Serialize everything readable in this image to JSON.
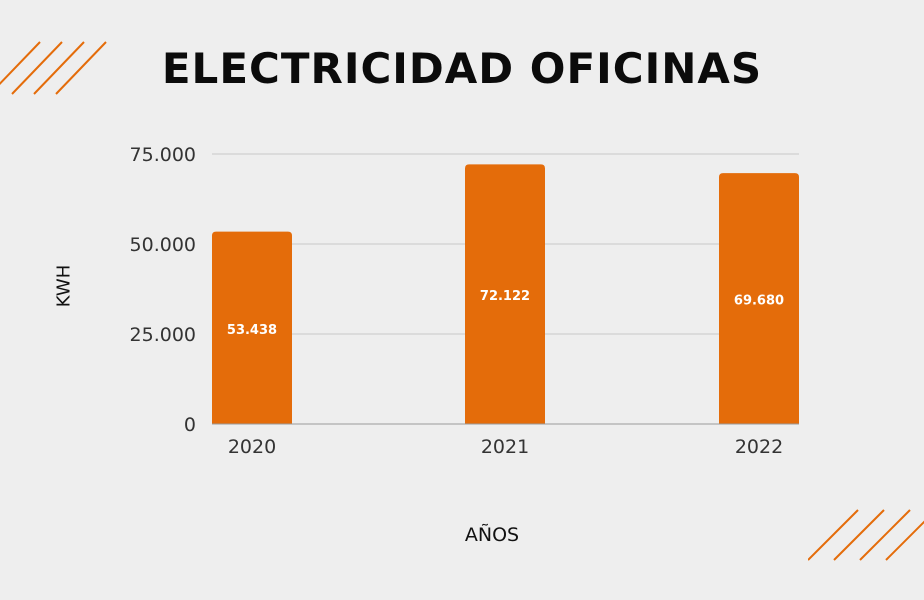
{
  "colors": {
    "background": "#eeeeee",
    "bar": "#e46c0a",
    "gridline": "#c8c8c8",
    "deco_lines": "#e46c0a",
    "bar_label": "#ffffff",
    "text": "#111111"
  },
  "chart_data": {
    "type": "bar",
    "title": "ELECTRICIDAD OFICINAS",
    "xlabel": "AÑOS",
    "ylabel": "KWH",
    "categories": [
      "2020",
      "2021",
      "2022"
    ],
    "values": [
      53438,
      72122,
      69680
    ],
    "value_labels": [
      "53.438",
      "72.122",
      "69.680"
    ],
    "yticks": [
      0,
      25000,
      50000,
      75000
    ],
    "ytick_labels": [
      "0",
      "25.000",
      "50.000",
      "75.000"
    ],
    "ylim": [
      0,
      75000
    ],
    "grid": true,
    "legend": "none"
  }
}
